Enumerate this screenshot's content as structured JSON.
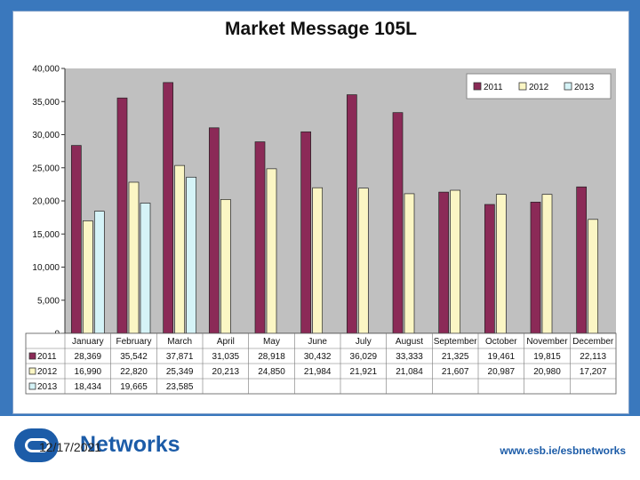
{
  "chart_data": {
    "type": "bar",
    "title": "Market Message 105L",
    "categories": [
      "January",
      "February",
      "March",
      "April",
      "May",
      "June",
      "July",
      "August",
      "September",
      "October",
      "November",
      "December"
    ],
    "series": [
      {
        "name": "2011",
        "color": "#8b2a57",
        "values": [
          28369,
          35542,
          37871,
          31035,
          28918,
          30432,
          36029,
          33333,
          21325,
          19461,
          19815,
          22113
        ],
        "labels": [
          "28,369",
          "35,542",
          "37,871",
          "31,035",
          "28,918",
          "30,432",
          "36,029",
          "33,333",
          "21,325",
          "19,461",
          "19,815",
          "22,113"
        ]
      },
      {
        "name": "2012",
        "color": "#fbf6c4",
        "values": [
          16990,
          22820,
          25349,
          20213,
          24850,
          21984,
          21921,
          21084,
          21607,
          20987,
          20980,
          17207
        ],
        "labels": [
          "16,990",
          "22,820",
          "25,349",
          "20,213",
          "24,850",
          "21,984",
          "21,921",
          "21,084",
          "21,607",
          "20,987",
          "20,980",
          "17,207"
        ]
      },
      {
        "name": "2013",
        "color": "#d5f3f7",
        "values": [
          18434,
          19665,
          23585,
          null,
          null,
          null,
          null,
          null,
          null,
          null,
          null,
          null
        ],
        "labels": [
          "18,434",
          "19,665",
          "23,585",
          "",
          "",
          "",
          "",
          "",
          "",
          "",
          "",
          ""
        ]
      }
    ],
    "ylim": [
      0,
      40000
    ],
    "yticks": [
      0,
      5000,
      10000,
      15000,
      20000,
      25000,
      30000,
      35000,
      40000
    ],
    "ytick_labels": [
      "0",
      "5,000",
      "10,000",
      "15,000",
      "20,000",
      "25,000",
      "30,000",
      "35,000",
      "40,000"
    ],
    "grid": false,
    "legend_position": "top-right",
    "plot_background": "#c0c0c0",
    "data_table": true
  },
  "footer": {
    "date": "12/17/2021",
    "brand": "Networks",
    "url": "www.esb.ie/esbnetworks"
  }
}
